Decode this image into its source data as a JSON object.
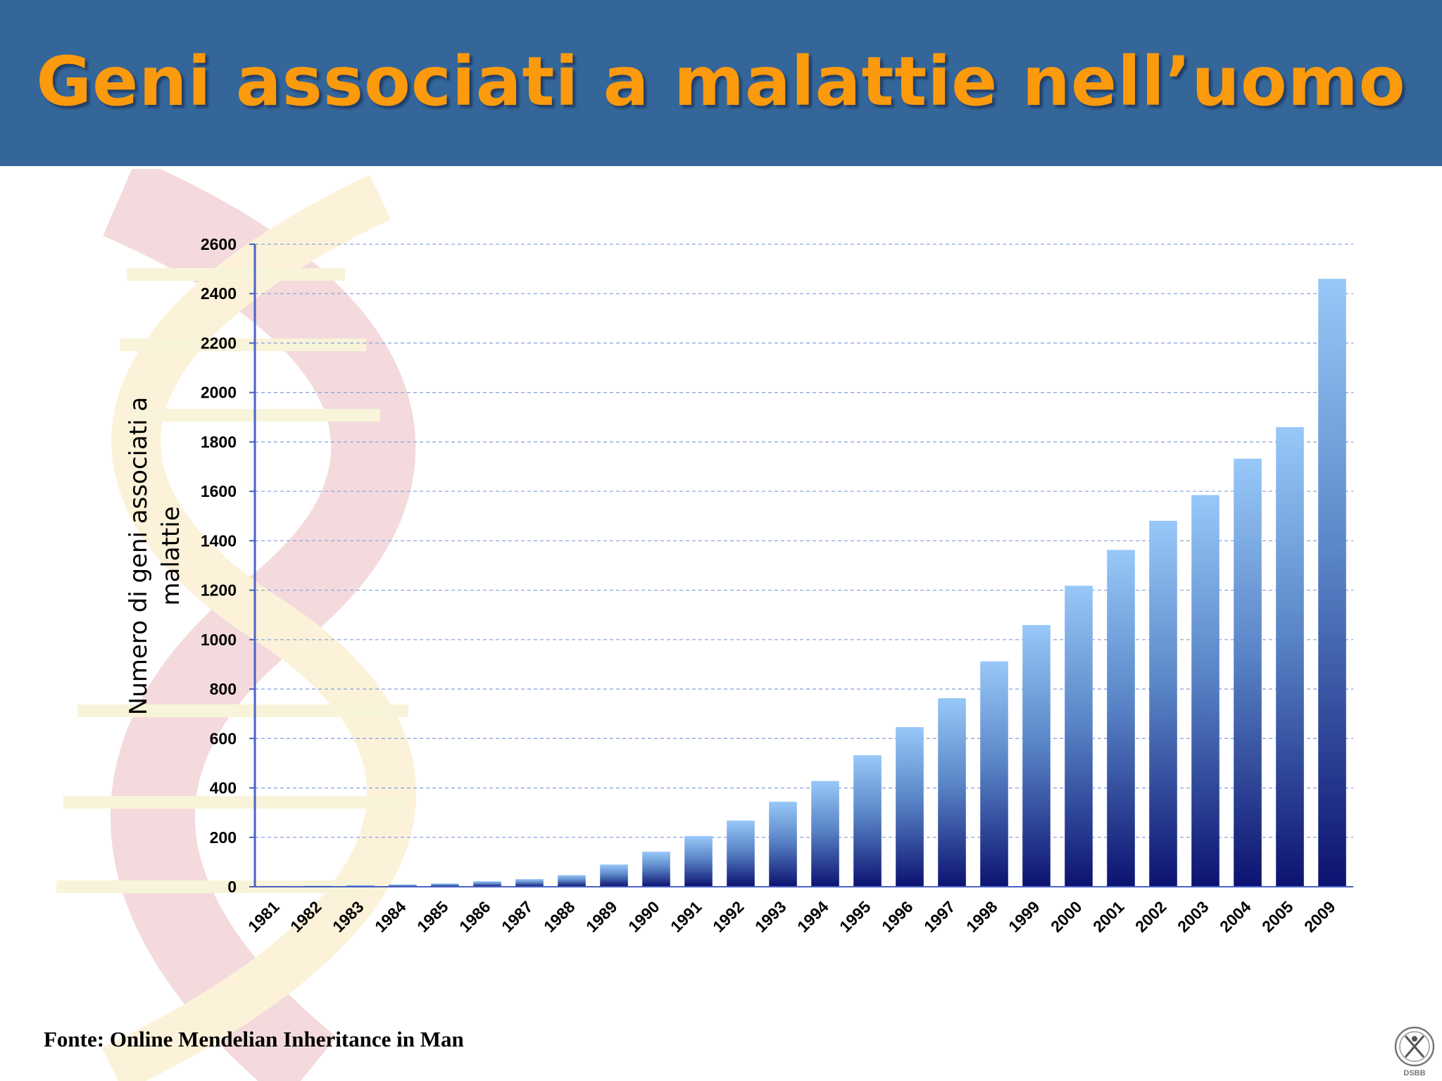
{
  "slide": {
    "title": "Geni associati a malattie nell’uomo",
    "source": "Fonte: Online Mendelian Inheritance in Man",
    "logo_text": "DSBB"
  },
  "colors": {
    "header_bg": "#34669a",
    "title": "#fb9a0c",
    "bar_top": "#98c8f8",
    "bar_bottom": "#0c1270",
    "grid": "#8ea4e0",
    "axis": "#4a62c4"
  },
  "chart_data": {
    "type": "bar",
    "title": "",
    "xlabel": "",
    "ylabel": "Numero di geni associati a malattie",
    "ylabel_lines": [
      "Numero di geni associati a",
      "malattie"
    ],
    "categories": [
      "1981",
      "1982",
      "1983",
      "1984",
      "1985",
      "1986",
      "1987",
      "1988",
      "1989",
      "1990",
      "1991",
      "1992",
      "1993",
      "1994",
      "1995",
      "1996",
      "1997",
      "1998",
      "1999",
      "2000",
      "2001",
      "2002",
      "2003",
      "2004",
      "2005",
      "2009"
    ],
    "values": [
      3,
      4,
      6,
      9,
      13,
      22,
      31,
      47,
      90,
      142,
      205,
      268,
      344,
      428,
      532,
      646,
      763,
      912,
      1059,
      1218,
      1363,
      1481,
      1585,
      1732,
      1860,
      2460
    ],
    "yticks": [
      0,
      200,
      400,
      600,
      800,
      1000,
      1200,
      1400,
      1600,
      1800,
      2000,
      2200,
      2400,
      2600
    ],
    "ylim": [
      0,
      2600
    ],
    "grid": true,
    "legend": "none"
  }
}
